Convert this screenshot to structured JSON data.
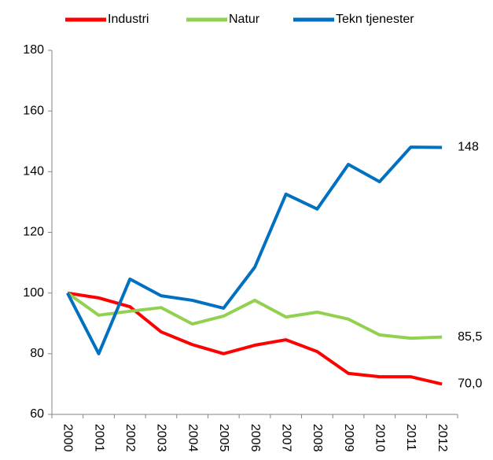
{
  "chart_data": {
    "type": "line",
    "categories": [
      "2000",
      "2001",
      "2002",
      "2003",
      "2004",
      "2005",
      "2006",
      "2007",
      "2008",
      "2009",
      "2010",
      "2011",
      "2012"
    ],
    "series": [
      {
        "name": "Industri",
        "color": "#ff0000",
        "values": [
          100,
          98.4,
          95.5,
          87.2,
          83,
          80,
          82.8,
          84.6,
          80.7,
          73.5,
          72.4,
          72.4,
          70.0
        ],
        "value_labels": [
          null,
          null,
          null,
          null,
          null,
          null,
          null,
          null,
          null,
          null,
          null,
          null,
          "70,0"
        ]
      },
      {
        "name": "Natur",
        "color": "#92d050",
        "values": [
          100,
          92.7,
          94,
          95.2,
          89.8,
          92.4,
          97.6,
          92.1,
          93.7,
          91.4,
          86.2,
          85.1,
          85.5
        ],
        "value_labels": [
          null,
          null,
          null,
          null,
          null,
          null,
          null,
          null,
          null,
          null,
          null,
          null,
          "85,5"
        ]
      },
      {
        "name": "Tekn tjenester",
        "color": "#0070c0",
        "values": [
          100,
          80,
          104.6,
          99.1,
          97.6,
          95,
          108.5,
          132.6,
          127.7,
          142.4,
          136.7,
          148.1,
          148
        ],
        "value_labels": [
          null,
          null,
          null,
          null,
          null,
          null,
          null,
          null,
          null,
          null,
          null,
          null,
          "148"
        ]
      }
    ],
    "ylim": [
      60,
      180
    ],
    "yticks": [
      60,
      80,
      100,
      120,
      140,
      160,
      180
    ],
    "grid": false,
    "legend": "top"
  }
}
